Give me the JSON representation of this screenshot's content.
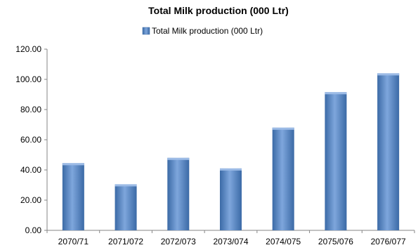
{
  "chart_data": {
    "type": "bar",
    "title": "Total Milk production (000 Ltr)",
    "xlabel": "",
    "ylabel": "",
    "categories": [
      "2070/71",
      "2071/072",
      "2072/073",
      "2073/074",
      "2074/075",
      "2075/076",
      "2076/077"
    ],
    "series": [
      {
        "name": "Total Milk production (000 Ltr)",
        "values": [
          44.5,
          30.5,
          48.0,
          41.0,
          68.0,
          91.5,
          104.0
        ]
      }
    ],
    "ylim": [
      0,
      120
    ],
    "yticks": [
      "0.00",
      "20.00",
      "40.00",
      "60.00",
      "80.00",
      "100.00",
      "120.00"
    ],
    "legend_position": "top",
    "grid": false,
    "colors": {
      "bar": "#4f81bd",
      "bar_dark": "#3b6aa6",
      "bar_light": "#7ea6dc",
      "axis": "#868686"
    }
  }
}
